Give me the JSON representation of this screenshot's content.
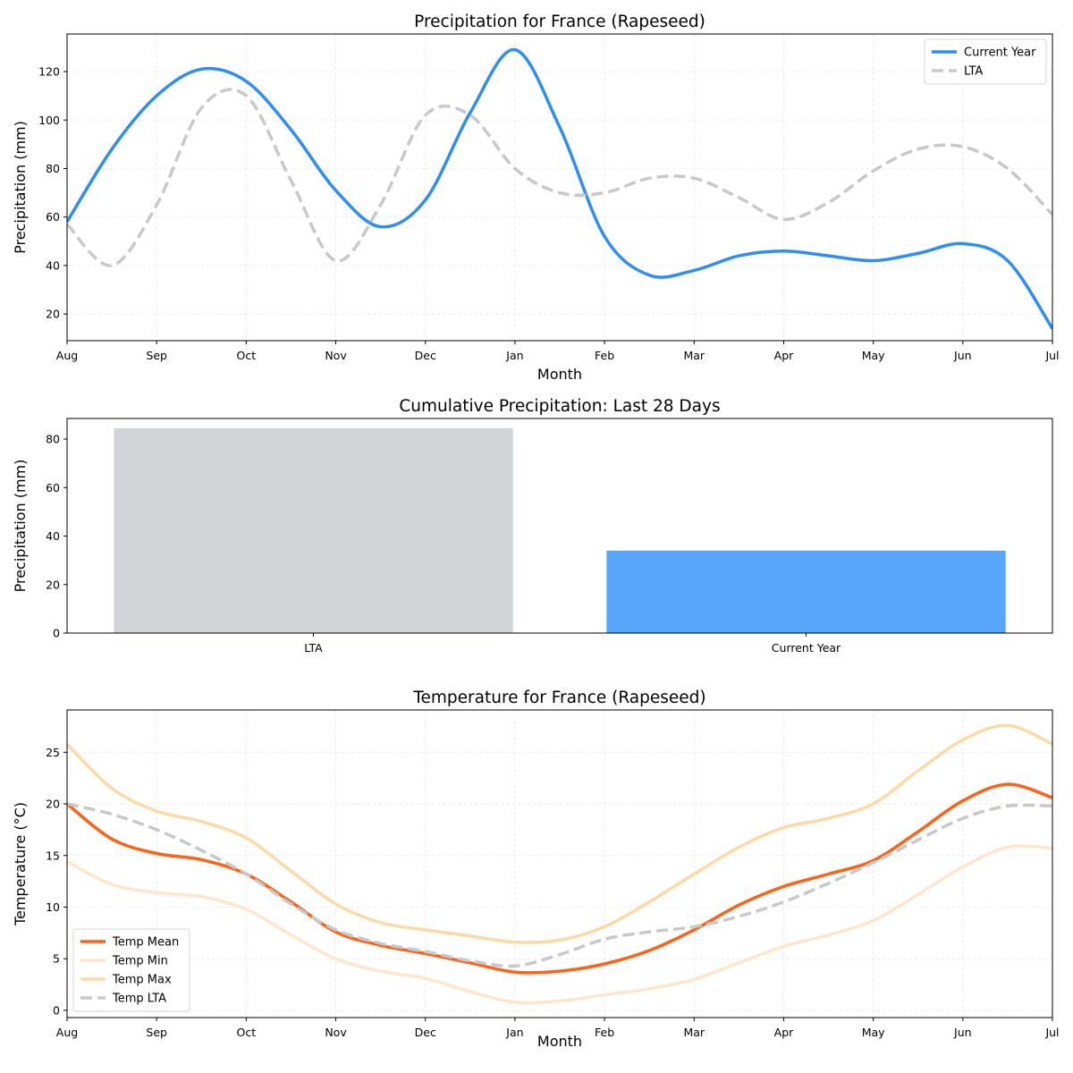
{
  "chart_data": [
    {
      "type": "line",
      "title": "Precipitation for France (Rapeseed)",
      "xlabel": "Month",
      "ylabel": "Precipitation (mm)",
      "xticks": [
        "Aug",
        "Sep",
        "Oct",
        "Nov",
        "Dec",
        "Jan",
        "Feb",
        "Mar",
        "Apr",
        "May",
        "Jun",
        "Jul"
      ],
      "xlim": [
        0,
        11
      ],
      "ylim": [
        9,
        135.5
      ],
      "yticks": [
        20,
        40,
        60,
        80,
        100,
        120
      ],
      "grid": true,
      "legend": "top-right",
      "x": [
        0,
        0.5,
        1,
        1.5,
        2,
        2.5,
        3,
        3.5,
        4,
        4.5,
        5,
        5.5,
        6,
        6.5,
        7,
        7.5,
        8,
        8.5,
        9,
        9.5,
        10,
        10.5,
        11
      ],
      "series": [
        {
          "name": "Current Year",
          "color": "#2e8ef5",
          "dash": false,
          "width": 3.5,
          "values": [
            58,
            88,
            110,
            121,
            116,
            96,
            71,
            56,
            67,
            103,
            129,
            97,
            52,
            36,
            38,
            44,
            46,
            44,
            42,
            45,
            49,
            42,
            14
          ]
        },
        {
          "name": "LTA",
          "color": "#c6c9cc",
          "dash": true,
          "width": 3.5,
          "values": [
            57,
            40,
            65,
            105,
            110,
            75,
            42,
            65,
            102,
            102,
            80,
            70,
            70,
            76,
            76,
            68,
            59,
            66,
            79,
            88,
            89,
            80,
            61
          ]
        }
      ]
    },
    {
      "type": "bar",
      "title": "Cumulative Precipitation: Last 28 Days",
      "xlabel": "",
      "ylabel": "Precipitation (mm)",
      "categories": [
        "LTA",
        "Current Year"
      ],
      "values": [
        84.5,
        34
      ],
      "colors": [
        "#d1d5d8",
        "#58a6fa"
      ],
      "ylim": [
        0,
        88.5
      ],
      "yticks": [
        0,
        20,
        40,
        60,
        80
      ],
      "grid": false
    },
    {
      "type": "line",
      "title": "Temperature for France (Rapeseed)",
      "xlabel": "Month",
      "ylabel": "Temperature (°C)",
      "xticks": [
        "Aug",
        "Sep",
        "Oct",
        "Nov",
        "Dec",
        "Jan",
        "Feb",
        "Mar",
        "Apr",
        "May",
        "Jun",
        "Jul"
      ],
      "xlim": [
        0,
        11
      ],
      "ylim": [
        -0.7,
        29.1
      ],
      "yticks": [
        0,
        5,
        10,
        15,
        20,
        25
      ],
      "grid": true,
      "legend": "bottom-left",
      "x": [
        0,
        0.5,
        1,
        1.5,
        2,
        2.5,
        3,
        3.5,
        4,
        4.5,
        5,
        5.5,
        6,
        6.5,
        7,
        7.5,
        8,
        8.5,
        9,
        9.5,
        10,
        10.5,
        11
      ],
      "series": [
        {
          "name": "Temp Mean",
          "color": "#fd6216",
          "dash": false,
          "width": 3.5,
          "values": [
            20,
            16.6,
            15.2,
            14.6,
            13.2,
            10.5,
            7.6,
            6.3,
            5.5,
            4.6,
            3.7,
            3.8,
            4.5,
            5.8,
            7.8,
            10.2,
            12,
            13.2,
            14.5,
            17.3,
            20.3,
            21.9,
            20.6
          ]
        },
        {
          "name": "Temp Min",
          "color": "#ffe5cc",
          "dash": false,
          "width": 3.5,
          "values": [
            14.4,
            12.2,
            11.4,
            11,
            9.8,
            7.3,
            5,
            3.8,
            3.1,
            1.8,
            0.8,
            0.9,
            1.5,
            2.1,
            3,
            4.6,
            6.2,
            7.3,
            8.7,
            11.2,
            13.9,
            15.8,
            15.7
          ]
        },
        {
          "name": "Temp Max",
          "color": "#fdd9a6",
          "dash": false,
          "width": 3.5,
          "values": [
            25.8,
            21.5,
            19.3,
            18.3,
            16.7,
            13.5,
            10.3,
            8.5,
            7.8,
            7.2,
            6.6,
            6.8,
            8.1,
            10.5,
            13.2,
            15.8,
            17.7,
            18.6,
            20,
            23.2,
            26.2,
            27.6,
            25.8
          ]
        },
        {
          "name": "Temp LTA",
          "color": "#c6c9cc",
          "dash": true,
          "width": 3.5,
          "values": [
            20,
            19,
            17.5,
            15.5,
            13.2,
            10.3,
            7.8,
            6.5,
            5.7,
            4.8,
            4.3,
            5.4,
            6.9,
            7.6,
            8.1,
            9.1,
            10.5,
            12.3,
            14.3,
            16.5,
            18.6,
            19.8,
            19.8
          ]
        }
      ]
    }
  ]
}
